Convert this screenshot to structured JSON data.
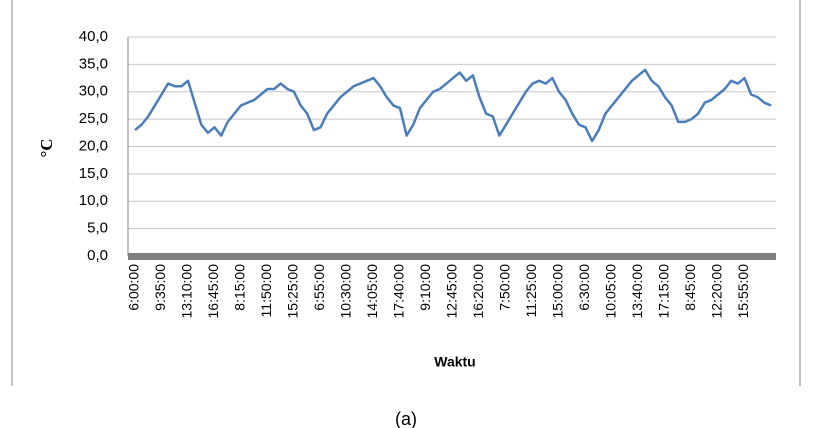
{
  "chart_data": {
    "type": "line",
    "y_label": "°C",
    "x_label": "Waktu",
    "caption": "(a)",
    "ylim": [
      0,
      40
    ],
    "yticks": [
      {
        "value": 0,
        "label": "0,0"
      },
      {
        "value": 5,
        "label": "5,0"
      },
      {
        "value": 10,
        "label": "10,0"
      },
      {
        "value": 15,
        "label": "15,0"
      },
      {
        "value": 20,
        "label": "20,0"
      },
      {
        "value": 25,
        "label": "25,0"
      },
      {
        "value": 30,
        "label": "30,0"
      },
      {
        "value": 35,
        "label": "35,0"
      },
      {
        "value": 40,
        "label": "40,0"
      }
    ],
    "grid": true,
    "categories": [
      "6:00:00",
      null,
      null,
      null,
      "9:35:00",
      null,
      null,
      null,
      "13:10:00",
      null,
      null,
      null,
      "16:45:00",
      null,
      null,
      null,
      "8:15:00",
      null,
      null,
      null,
      "11:50:00",
      null,
      null,
      null,
      "15:25:00",
      null,
      null,
      null,
      "6:55:00",
      null,
      null,
      null,
      "10:30:00",
      null,
      null,
      null,
      "14:05:00",
      null,
      null,
      null,
      "17:40:00",
      null,
      null,
      null,
      "9:10:00",
      null,
      null,
      null,
      "12:45:00",
      null,
      null,
      null,
      "16:20:00",
      null,
      null,
      null,
      "7:50:00",
      null,
      null,
      null,
      "11:25:00",
      null,
      null,
      null,
      "15:00:00",
      null,
      null,
      null,
      "6:30:00",
      null,
      null,
      null,
      "10:05:00",
      null,
      null,
      null,
      "13:40:00",
      null,
      null,
      null,
      "17:15:00",
      null,
      null,
      null,
      "8:45:00",
      null,
      null,
      null,
      "12:20:00",
      null,
      null,
      null,
      "15:55:00",
      null,
      null,
      null,
      null
    ],
    "series": [
      {
        "color": "#4a7ebb",
        "values": [
          23,
          24,
          25.5,
          27.5,
          29.5,
          31.5,
          31,
          31,
          32,
          28,
          24,
          22.5,
          23.5,
          22,
          24.5,
          26,
          27.5,
          28,
          28.5,
          29.5,
          30.5,
          30.5,
          31.5,
          30.5,
          30,
          27.5,
          26,
          23,
          23.5,
          26,
          27.5,
          29,
          30,
          31,
          31.5,
          32,
          32.5,
          31,
          29,
          27.5,
          27,
          22,
          24,
          27,
          28.5,
          30,
          30.5,
          31.5,
          32.5,
          33.5,
          32,
          33,
          29,
          26,
          25.5,
          22,
          24,
          26,
          28,
          30,
          31.5,
          32,
          31.5,
          32.5,
          30,
          28.5,
          26,
          24,
          23.5,
          21,
          23,
          26,
          27.5,
          29,
          30.5,
          32,
          33,
          34,
          32,
          31,
          29,
          27.5,
          24.5,
          24.5,
          25,
          26,
          28,
          28.5,
          29.5,
          30.5,
          32,
          31.5,
          32.5,
          29.5,
          29,
          28,
          27.5
        ]
      }
    ]
  }
}
